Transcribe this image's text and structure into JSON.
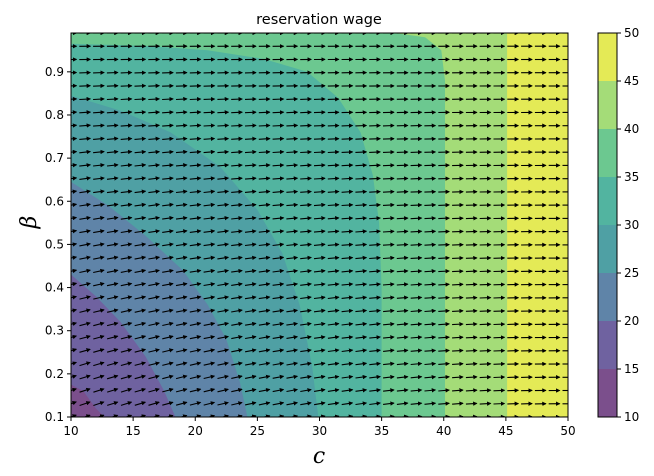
{
  "chart_data": {
    "type": "contourf",
    "title": "reservation wage",
    "xlabel": "c",
    "ylabel": "β",
    "xlim": [
      10,
      50
    ],
    "ylim": [
      0.1,
      0.99
    ],
    "x_ticks": [
      "10",
      "15",
      "20",
      "25",
      "30",
      "35",
      "40",
      "45",
      "50"
    ],
    "y_ticks": [
      "0.1",
      "0.2",
      "0.3",
      "0.4",
      "0.5",
      "0.6",
      "0.7",
      "0.8",
      "0.9"
    ],
    "levels": [
      10,
      15,
      20,
      25,
      30,
      35,
      40,
      45,
      50
    ],
    "level_colors": [
      "#7b4f8c",
      "#6f62a0",
      "#5f84a8",
      "#4fa0a4",
      "#52b4a0",
      "#6cc890",
      "#a4dc78",
      "#e4ea56"
    ],
    "colorbar": {
      "ticks": [
        "10",
        "15",
        "20",
        "25",
        "30",
        "35",
        "40",
        "45",
        "50"
      ]
    },
    "boundaries": [
      {
        "level": 15,
        "points": [
          [
            10,
            0.175
          ],
          [
            11,
            0.16
          ],
          [
            12,
            0.12
          ],
          [
            12.7,
            0.1
          ]
        ]
      },
      {
        "level": 20,
        "points": [
          [
            10,
            0.43
          ],
          [
            12,
            0.38
          ],
          [
            14,
            0.32
          ],
          [
            16,
            0.24
          ],
          [
            17.5,
            0.16
          ],
          [
            18.4,
            0.1
          ]
        ]
      },
      {
        "level": 25,
        "points": [
          [
            10,
            0.645
          ],
          [
            13,
            0.59
          ],
          [
            16,
            0.52
          ],
          [
            19,
            0.44
          ],
          [
            21,
            0.36
          ],
          [
            22.5,
            0.28
          ],
          [
            23.6,
            0.18
          ],
          [
            24.2,
            0.1
          ]
        ]
      },
      {
        "level": 30,
        "points": [
          [
            10,
            0.845
          ],
          [
            14,
            0.81
          ],
          [
            18,
            0.76
          ],
          [
            22,
            0.68
          ],
          [
            25,
            0.58
          ],
          [
            27,
            0.48
          ],
          [
            28.4,
            0.36
          ],
          [
            29.4,
            0.22
          ],
          [
            29.9,
            0.1
          ]
        ]
      },
      {
        "level": 35,
        "points": [
          [
            10,
            0.965
          ],
          [
            16,
            0.96
          ],
          [
            21,
            0.95
          ],
          [
            25.5,
            0.93
          ],
          [
            29,
            0.9
          ],
          [
            31.5,
            0.84
          ],
          [
            33.3,
            0.76
          ],
          [
            34.3,
            0.66
          ],
          [
            34.8,
            0.55
          ],
          [
            35,
            0.4
          ],
          [
            35,
            0.1
          ]
        ]
      },
      {
        "level": 40,
        "points": [
          [
            25,
            0.99
          ],
          [
            32,
            0.99
          ],
          [
            36,
            0.99
          ],
          [
            38.5,
            0.98
          ],
          [
            39.8,
            0.95
          ],
          [
            40.1,
            0.88
          ],
          [
            40.1,
            0.1
          ]
        ]
      },
      {
        "level": 45,
        "points": [
          [
            45.1,
            0.99
          ],
          [
            45.1,
            0.1
          ]
        ]
      }
    ]
  }
}
